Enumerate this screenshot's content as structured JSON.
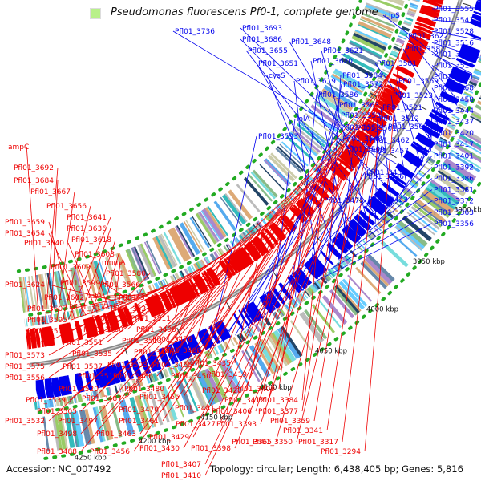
{
  "title": "Pseudomonas fluorescens Pf0-1, complete genome",
  "footer": {
    "accession": "Accession: NC_007492",
    "summary": "Topology: circular; Length: 6,438,405 bp; Genes: 5,816"
  },
  "colors": {
    "forward": "#0000ee",
    "reverse": "#ee0000",
    "backbone": "#888888",
    "dots": "#22aa22"
  },
  "scale_labels": [
    "4250 kbp",
    "4200 kbp",
    "4150 kbp",
    "4100 kbp",
    "4050 kbp",
    "4000 kbp",
    "3950 kbp",
    "3900 kbp",
    "3850 kbp",
    "3800 kbp",
    "3750 kbp"
  ],
  "forward_labels": [
    "Pfl01_3555",
    "Pfl01_3541",
    "Pfl01_3528",
    "Pfl01_3516",
    "Pfl01_3515",
    "Pfl01_3514",
    "Pfl01_3471",
    "Pfl01_3468",
    "Pfl01_3458",
    "Pfl01_3444",
    "Pfl01_3437",
    "Pfl01_3420",
    "Pfl01_3417",
    "Pfl01_3401",
    "Pfl01_3392",
    "Pfl01_3386",
    "Pfl01_3381",
    "Pfl01_3372",
    "Pfl01_3363",
    "Pfl01_3356",
    "clpS",
    "Pfl01_3622",
    "Pfl01_3582",
    "Pfl01_3581",
    "Pfl01_3569",
    "Pfl01_3523",
    "Pfl01_3521",
    "Pfl01_3512",
    "Pfl01_3502",
    "Pfl01_3501",
    "Pfl01_3462",
    "Pfl01_3457",
    "Pfl01_3438",
    "Pfl01_3436",
    "Pfl01_3423",
    "Pfl01_3475",
    "Pfl01_3736",
    "Pfl01_3693",
    "Pfl01_3686",
    "Pfl01_3648",
    "Pfl01_3655",
    "Pfl01_3621",
    "Pfl01_3651",
    "Pfl01_3620",
    "cysS",
    "Pfl01_3584",
    "Pfl01_3619",
    "Pfl01_3572",
    "Pfl01_3586",
    "Pfl01_3563",
    "lolA",
    "Pfl01_3553",
    "Pfl01_3552",
    "Pfl01_3540",
    "Pfl01_3509",
    "Pfl01_3593"
  ],
  "reverse_labels": [
    "ampC",
    "Pfl01_3692",
    "Pfl01_3684",
    "Pfl01_3667",
    "Pfl01_3656",
    "Pfl01_3641",
    "Pfl01_3659",
    "Pfl01_3636",
    "Pfl01_3654",
    "Pfl01_3618",
    "Pfl01_3640",
    "Pfl01_3608",
    "Pfl01_3609",
    "mnmA",
    "Pfl01_3580",
    "Pfl01_3624",
    "Pfl01_3599",
    "Pfl01_3566",
    "Pfl01_3602",
    "infA",
    "Pfl01_3546",
    "Pfl01_3607",
    "Pfl01_3577",
    "Pfl01_3527",
    "Pfl01_3595",
    "Pfl01_3550",
    "Pfl01_3511",
    "Pfl01_3578",
    "Pfl01_3530",
    "Pfl01_3495",
    "aat",
    "Pfl01_3551",
    "Pfl01_3513",
    "Pfl01_3476",
    "Pfl01_3573",
    "Pfl01_3535",
    "Pfl01_3496",
    "Pfl01_3460",
    "Pfl01_3575",
    "Pfl01_3537",
    "Pfl01_3503",
    "Pfl01_3465",
    "Pfl01_3435",
    "Pfl01_3556",
    "Pfl01_3519",
    "Pfl01_3486",
    "Pfl01_3450",
    "Pfl01_3419",
    "Pfl01_3520",
    "Pfl01_3480",
    "Pfl01_3428",
    "Pfl01_3400",
    "Pfl01_3539",
    "Pfl01_3487",
    "Pfl01_3455",
    "Pfl01_3412",
    "Pfl01_3384",
    "Pfl01_3505",
    "Pfl01_3470",
    "Pfl01_3441",
    "Pfl01_3406",
    "Pfl01_3377",
    "Pfl01_3532",
    "Pfl01_3497",
    "Pfl01_3461",
    "Pfl01_3427",
    "Pfl01_3393",
    "Pfl01_3359",
    "Pfl01_3498",
    "Pfl01_3463",
    "Pfl01_3429",
    "Pfl01_3341",
    "Pfl01_3365",
    "Pfl01_3350",
    "Pfl01_3317",
    "Pfl01_3488",
    "Pfl01_3456",
    "Pfl01_3430",
    "Pfl01_3398",
    "Pfl01_3294",
    "Pfl01_3407",
    "Pfl01_3410"
  ]
}
